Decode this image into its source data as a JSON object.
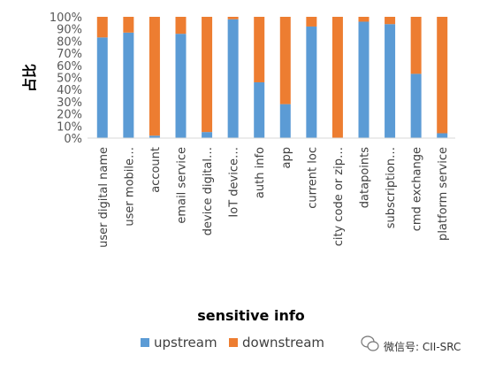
{
  "chart_data": {
    "type": "bar",
    "stacked": true,
    "ylabel": "占比",
    "xlabel": "sensitive info",
    "ylim": [
      0,
      100
    ],
    "yticks": [
      "0%",
      "10%",
      "20%",
      "30%",
      "40%",
      "50%",
      "60%",
      "70%",
      "80%",
      "90%",
      "100%"
    ],
    "categories": [
      "user digital name",
      "user mobile…",
      "account",
      "email service",
      "device digital…",
      "IoT device…",
      "auth info",
      "app",
      "current loc",
      "city code or zip…",
      "datapoints",
      "subscription…",
      "cmd exchange",
      "platform service"
    ],
    "series": [
      {
        "name": "upstream",
        "color": "#5B9BD5",
        "values": [
          83,
          87,
          2,
          86,
          5,
          98,
          46,
          28,
          92,
          0,
          96,
          94,
          53,
          4
        ]
      },
      {
        "name": "downstream",
        "color": "#ED7D31",
        "values": [
          17,
          13,
          98,
          14,
          95,
          2,
          54,
          72,
          8,
          100,
          4,
          6,
          47,
          96
        ]
      }
    ],
    "legend": "bottom",
    "grid": false
  },
  "watermark": {
    "text": "微信号: CII-SRC"
  }
}
